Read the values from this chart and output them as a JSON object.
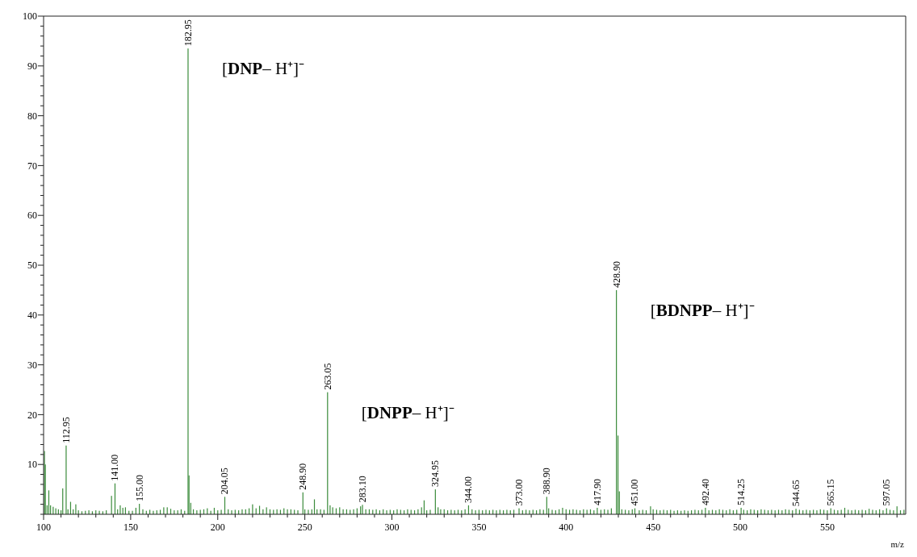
{
  "chart_data": {
    "type": "bar",
    "xlabel": "m/z",
    "color": "#3c8c3c",
    "x": [
      100.5,
      101,
      102,
      103,
      104,
      105.5,
      107,
      108.5,
      110,
      111,
      112.95,
      114,
      115.5,
      117,
      118.5,
      120,
      122,
      124,
      126,
      128,
      130,
      132,
      134,
      136,
      139,
      141,
      142.5,
      144,
      145.5,
      147,
      149,
      151,
      153,
      155,
      157,
      159,
      161,
      163,
      165,
      167,
      169,
      171,
      173,
      175,
      177,
      179,
      181,
      182.95,
      183.5,
      184.5,
      186,
      188,
      190,
      192,
      194,
      196,
      198,
      200,
      202,
      204.05,
      206,
      208,
      210,
      212,
      214,
      216,
      218,
      220,
      222,
      224,
      226,
      228,
      230,
      232,
      234,
      236,
      238,
      240,
      242,
      244,
      246,
      248.9,
      250,
      252,
      254,
      255.5,
      257,
      259,
      261,
      263.05,
      264.5,
      266,
      268,
      270,
      272,
      274,
      276,
      278,
      280,
      282,
      283.1,
      285,
      287,
      289,
      291,
      293,
      295,
      297,
      299,
      301,
      303,
      305,
      307,
      309,
      311,
      313,
      315,
      317,
      318.5,
      320,
      322,
      324.95,
      326.5,
      328,
      330,
      332,
      334,
      336,
      338,
      340,
      342,
      344,
      346,
      348,
      350,
      352,
      354,
      356,
      358,
      360,
      362,
      364,
      366,
      368,
      370,
      373,
      375,
      377,
      379,
      381,
      383,
      385,
      387,
      388.9,
      390,
      392,
      394,
      396,
      398,
      400,
      402,
      404,
      406,
      408,
      410,
      412,
      414,
      416,
      417.9,
      420,
      422,
      424,
      426,
      428.9,
      429.8,
      430.6,
      432,
      434,
      436,
      438,
      439.5,
      442,
      444,
      446,
      448.5,
      450,
      452,
      454,
      456,
      458,
      460,
      462,
      464,
      466,
      468,
      470,
      472,
      474,
      476,
      478,
      480,
      482,
      484,
      486,
      488,
      490,
      492,
      494,
      496,
      498,
      500.5,
      502,
      504,
      506,
      508,
      510,
      512,
      514,
      516,
      518,
      520,
      522,
      524,
      526,
      528,
      530,
      532,
      534,
      536,
      538,
      540,
      542,
      544,
      546,
      548,
      550,
      552,
      554,
      556,
      558,
      560,
      562,
      564,
      566,
      568,
      570,
      572,
      574,
      576,
      578,
      580,
      582,
      584,
      586,
      588,
      590,
      592,
      594
    ],
    "values": [
      12.7,
      10,
      1.8,
      4.8,
      1.8,
      1.5,
      1.2,
      1,
      0.8,
      5.2,
      13.8,
      1,
      2.5,
      1,
      2,
      0.8,
      0.6,
      0.7,
      0.8,
      0.6,
      0.8,
      0.7,
      0.6,
      0.8,
      3.7,
      6.2,
      1,
      1.8,
      1.3,
      1.4,
      0.7,
      0.7,
      1.3,
      2.1,
      1,
      0.7,
      0.9,
      0.7,
      0.8,
      0.9,
      1.4,
      1.4,
      1.1,
      0.8,
      0.8,
      1,
      0.7,
      93.5,
      7.8,
      2.3,
      1,
      0.8,
      0.9,
      1,
      1.2,
      0.7,
      1.3,
      0.8,
      0.9,
      3.5,
      1,
      0.8,
      0.9,
      0.8,
      1,
      1,
      1.2,
      2,
      1.2,
      1.7,
      1,
      1.4,
      1,
      0.9,
      1,
      0.9,
      1.2,
      1,
      1,
      0.9,
      0.8,
      4.4,
      1,
      0.9,
      1,
      3,
      1,
      1,
      0.9,
      24.5,
      1.8,
      1.4,
      1.2,
      1.4,
      1,
      1,
      0.9,
      1,
      1.2,
      1.6,
      1.9,
      1,
      1,
      0.9,
      1,
      0.8,
      1,
      0.8,
      0.9,
      0.8,
      1,
      0.9,
      0.8,
      1,
      0.9,
      0.8,
      1,
      1.4,
      2.8,
      0.8,
      0.9,
      5,
      1.4,
      1,
      1,
      0.8,
      0.9,
      0.8,
      0.9,
      0.8,
      1,
      1.8,
      1,
      0.8,
      0.9,
      0.8,
      0.9,
      0.8,
      0.9,
      0.8,
      0.9,
      0.8,
      0.9,
      0.8,
      0.9,
      1.2,
      0.8,
      0.9,
      0.8,
      0.9,
      0.8,
      1,
      0.9,
      3.5,
      1.2,
      0.9,
      0.8,
      1,
      1.3,
      1,
      0.9,
      1,
      0.9,
      0.8,
      1,
      0.9,
      1,
      0.8,
      1.3,
      0.9,
      1,
      0.9,
      1.2,
      45,
      15.8,
      4.6,
      1,
      0.9,
      0.8,
      1,
      1.2,
      0.8,
      0.9,
      0.8,
      1.6,
      1,
      0.9,
      0.8,
      0.9,
      0.8,
      0.9,
      0.7,
      0.8,
      0.7,
      0.8,
      0.7,
      0.8,
      0.9,
      0.8,
      0.9,
      1.3,
      0.8,
      0.9,
      0.8,
      1,
      0.9,
      0.8,
      1,
      0.8,
      0.9,
      1.3,
      0.9,
      0.8,
      1,
      0.9,
      0.8,
      1,
      0.9,
      0.8,
      0.9,
      0.8,
      0.9,
      0.8,
      1,
      0.9,
      0.8,
      1.1,
      0.9,
      0.8,
      0.9,
      0.8,
      0.9,
      0.8,
      1,
      0.9,
      0.8,
      1.2,
      0.9,
      0.8,
      0.9,
      1.3,
      0.9,
      0.8,
      0.9,
      0.8,
      0.9,
      0.8,
      1.1,
      0.9,
      0.8,
      1,
      0.8,
      1.2,
      0.9,
      0.8,
      1.6,
      0.8,
      0.9
    ],
    "xlim": [
      100,
      595
    ],
    "xticks": [
      100,
      {
        "value": 110,
        "label": null
      },
      {
        "value": 120,
        "label": null
      },
      {
        "value": 130,
        "label": null
      },
      {
        "value": 140,
        "label": null
      },
      150,
      {
        "value": 160,
        "label": null
      },
      {
        "value": 170,
        "label": null
      },
      {
        "value": 180,
        "label": null
      },
      {
        "value": 190,
        "label": null
      },
      200,
      {
        "value": 210,
        "label": null
      },
      {
        "value": 220,
        "label": null
      },
      {
        "value": 230,
        "label": null
      },
      {
        "value": 240,
        "label": null
      },
      250,
      {
        "value": 260,
        "label": null
      },
      {
        "value": 270,
        "label": null
      },
      {
        "value": 280,
        "label": null
      },
      {
        "value": 290,
        "label": null
      },
      300,
      {
        "value": 310,
        "label": null
      },
      {
        "value": 320,
        "label": null
      },
      {
        "value": 330,
        "label": null
      },
      {
        "value": 340,
        "label": null
      },
      350,
      {
        "value": 360,
        "label": null
      },
      {
        "value": 370,
        "label": null
      },
      {
        "value": 380,
        "label": null
      },
      {
        "value": 390,
        "label": null
      },
      400,
      {
        "value": 410,
        "label": null
      },
      {
        "value": 420,
        "label": null
      },
      {
        "value": 430,
        "label": null
      },
      {
        "value": 440,
        "label": null
      },
      450,
      {
        "value": 460,
        "label": null
      },
      {
        "value": 470,
        "label": null
      },
      {
        "value": 480,
        "label": null
      },
      {
        "value": 490,
        "label": null
      },
      500,
      {
        "value": 510,
        "label": null
      },
      {
        "value": 520,
        "label": null
      },
      {
        "value": 530,
        "label": null
      },
      {
        "value": 540,
        "label": null
      },
      550,
      {
        "value": 560,
        "label": null
      },
      {
        "value": 570,
        "label": null
      },
      {
        "value": 580,
        "label": null
      },
      {
        "value": 590,
        "label": null
      }
    ],
    "ylim": [
      0,
      100
    ],
    "yticks": [
      {
        "value": 0,
        "label": null
      },
      {
        "value": 2,
        "label": null
      },
      {
        "value": 4,
        "label": null
      },
      {
        "value": 6,
        "label": null
      },
      {
        "value": 8,
        "label": null
      },
      10,
      {
        "value": 12,
        "label": null
      },
      {
        "value": 14,
        "label": null
      },
      {
        "value": 16,
        "label": null
      },
      {
        "value": 18,
        "label": null
      },
      20,
      {
        "value": 22,
        "label": null
      },
      {
        "value": 24,
        "label": null
      },
      {
        "value": 26,
        "label": null
      },
      {
        "value": 28,
        "label": null
      },
      30,
      {
        "value": 32,
        "label": null
      },
      {
        "value": 34,
        "label": null
      },
      {
        "value": 36,
        "label": null
      },
      {
        "value": 38,
        "label": null
      },
      40,
      {
        "value": 42,
        "label": null
      },
      {
        "value": 44,
        "label": null
      },
      {
        "value": 46,
        "label": null
      },
      {
        "value": 48,
        "label": null
      },
      50,
      {
        "value": 52,
        "label": null
      },
      {
        "value": 54,
        "label": null
      },
      {
        "value": 56,
        "label": null
      },
      {
        "value": 58,
        "label": null
      },
      60,
      {
        "value": 62,
        "label": null
      },
      {
        "value": 64,
        "label": null
      },
      {
        "value": 66,
        "label": null
      },
      {
        "value": 68,
        "label": null
      },
      70,
      {
        "value": 72,
        "label": null
      },
      {
        "value": 74,
        "label": null
      },
      {
        "value": 76,
        "label": null
      },
      {
        "value": 78,
        "label": null
      },
      80,
      {
        "value": 82,
        "label": null
      },
      {
        "value": 84,
        "label": null
      },
      {
        "value": 86,
        "label": null
      },
      {
        "value": 88,
        "label": null
      },
      90,
      {
        "value": 92,
        "label": null
      },
      {
        "value": 94,
        "label": null
      },
      {
        "value": 96,
        "label": null
      },
      {
        "value": 98,
        "label": null
      },
      100
    ],
    "annotations": [
      {
        "text": "112.95",
        "x": 112.95,
        "y": 13.8
      },
      {
        "text": "141.00",
        "x": 141,
        "y": 6.2
      },
      {
        "text": "155.00",
        "x": 155,
        "y": 2.1
      },
      {
        "text": "182.95",
        "x": 182.95,
        "y": 93.5
      },
      {
        "text": "204.05",
        "x": 204.05,
        "y": 3.5
      },
      {
        "text": "248.90",
        "x": 248.9,
        "y": 4.4
      },
      {
        "text": "263.05",
        "x": 263.05,
        "y": 24.5
      },
      {
        "text": "283.10",
        "x": 283.1,
        "y": 1.9
      },
      {
        "text": "324.95",
        "x": 324.95,
        "y": 5
      },
      {
        "text": "344.00",
        "x": 344,
        "y": 1.8
      },
      {
        "text": "373.00",
        "x": 373,
        "y": 1.2
      },
      {
        "text": "388.90",
        "x": 388.9,
        "y": 3.5
      },
      {
        "text": "417.90",
        "x": 417.9,
        "y": 1.3
      },
      {
        "text": "428.90",
        "x": 428.9,
        "y": 45
      },
      {
        "text": "451.00",
        "x": 439.5,
        "y": 1.2
      },
      {
        "text": "492.40",
        "x": 480,
        "y": 1.3
      },
      {
        "text": "514.25",
        "x": 500.5,
        "y": 1.3
      },
      {
        "text": "544.65",
        "x": 532,
        "y": 1.1
      },
      {
        "text": "565.15",
        "x": 552,
        "y": 1.2
      },
      {
        "text": "597.05",
        "x": 584,
        "y": 1.2
      },
      {
        "text": "[DNP– H⁺]⁻",
        "x": 182.95,
        "y": 93.5
      },
      {
        "text": "[DNPP– H⁺]⁻",
        "x": 263.05,
        "y": 24.5
      },
      {
        "text": "[BDNPP– H⁺]⁻",
        "x": 428.9,
        "y": 45
      }
    ]
  }
}
